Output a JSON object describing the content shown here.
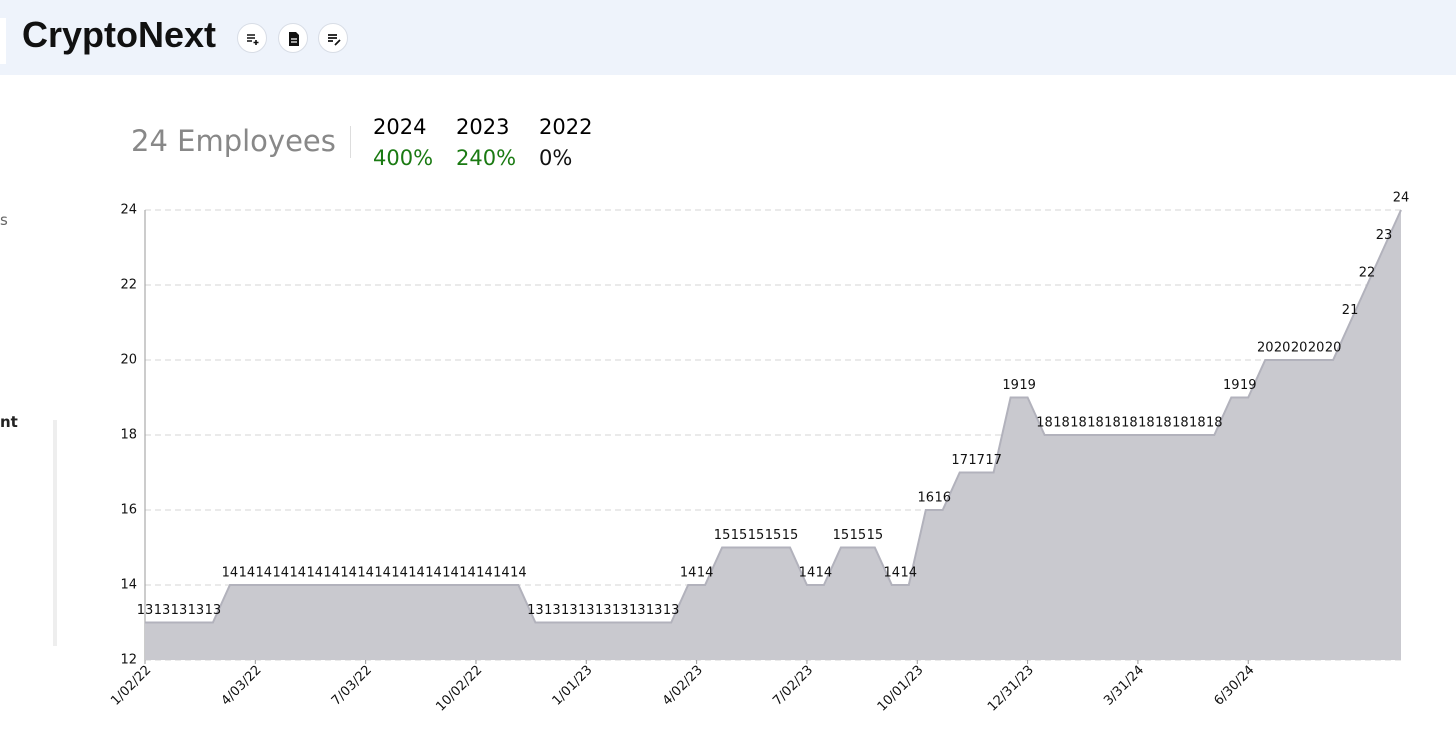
{
  "header": {
    "title": "CryptoNext"
  },
  "sidebar": {
    "fragments": [
      "s",
      "nt"
    ]
  },
  "summary": {
    "headline": "24 Employees",
    "stats": [
      {
        "year": "2024",
        "change": "400%",
        "color": "#1a7a12"
      },
      {
        "year": "2023",
        "change": "240%",
        "color": "#1a7a12"
      },
      {
        "year": "2022",
        "change": "0%",
        "color": "#111111"
      }
    ]
  },
  "chart_data": {
    "type": "area",
    "x": [
      "1/02/22",
      "1/16/22",
      "1/30/22",
      "2/13/22",
      "2/27/22",
      "3/13/22",
      "3/27/22",
      "4/10/22",
      "4/24/22",
      "5/08/22",
      "5/22/22",
      "6/05/22",
      "6/19/22",
      "7/03/22",
      "7/17/22",
      "7/31/22",
      "8/14/22",
      "8/28/22",
      "9/11/22",
      "9/25/22",
      "10/09/22",
      "10/23/22",
      "11/06/22",
      "11/20/22",
      "12/04/22",
      "12/18/22",
      "1/01/23",
      "1/15/23",
      "1/29/23",
      "2/12/23",
      "2/26/23",
      "3/12/23",
      "3/26/23",
      "4/09/23",
      "4/23/23",
      "5/07/23",
      "5/21/23",
      "6/04/23",
      "6/18/23",
      "7/02/23",
      "7/16/23",
      "7/30/23",
      "8/13/23",
      "8/27/23",
      "9/10/23",
      "9/24/23",
      "10/08/23",
      "10/22/23",
      "11/05/23",
      "11/19/23",
      "12/03/23",
      "12/17/23",
      "12/31/23",
      "1/14/24",
      "1/28/24",
      "2/11/24",
      "2/25/24",
      "3/10/24",
      "3/24/24",
      "4/07/24",
      "4/21/24",
      "5/05/24",
      "5/19/24",
      "6/02/24",
      "6/16/24",
      "6/30/24",
      "7/14/24",
      "7/28/24",
      "8/11/24",
      "8/25/24",
      "9/08/24",
      "9/22/24",
      "10/06/24",
      "10/20/24",
      "11/03/24"
    ],
    "values": [
      13,
      13,
      13,
      13,
      13,
      14,
      14,
      14,
      14,
      14,
      14,
      14,
      14,
      14,
      14,
      14,
      14,
      14,
      14,
      14,
      14,
      14,
      14,
      13,
      13,
      13,
      13,
      13,
      13,
      13,
      13,
      13,
      14,
      14,
      15,
      15,
      15,
      15,
      15,
      14,
      14,
      15,
      15,
      15,
      14,
      14,
      16,
      16,
      17,
      17,
      17,
      19,
      19,
      18,
      18,
      18,
      18,
      18,
      18,
      18,
      18,
      18,
      18,
      18,
      19,
      19,
      20,
      20,
      20,
      20,
      20,
      21,
      22,
      23,
      24
    ],
    "color": "#c9c9cf",
    "line_color": "#b2b2bc",
    "xlim": [
      "1/02/22",
      "11/03/24"
    ],
    "xticks": [
      "1/02/22",
      "4/03/22",
      "7/03/22",
      "10/02/22",
      "1/01/23",
      "4/02/23",
      "7/02/23",
      "10/01/23",
      "12/31/23",
      "3/31/24",
      "6/30/24"
    ],
    "ylim": [
      12,
      24
    ],
    "yticks": [
      12,
      14,
      16,
      18,
      20,
      22,
      24
    ],
    "grid": true
  }
}
